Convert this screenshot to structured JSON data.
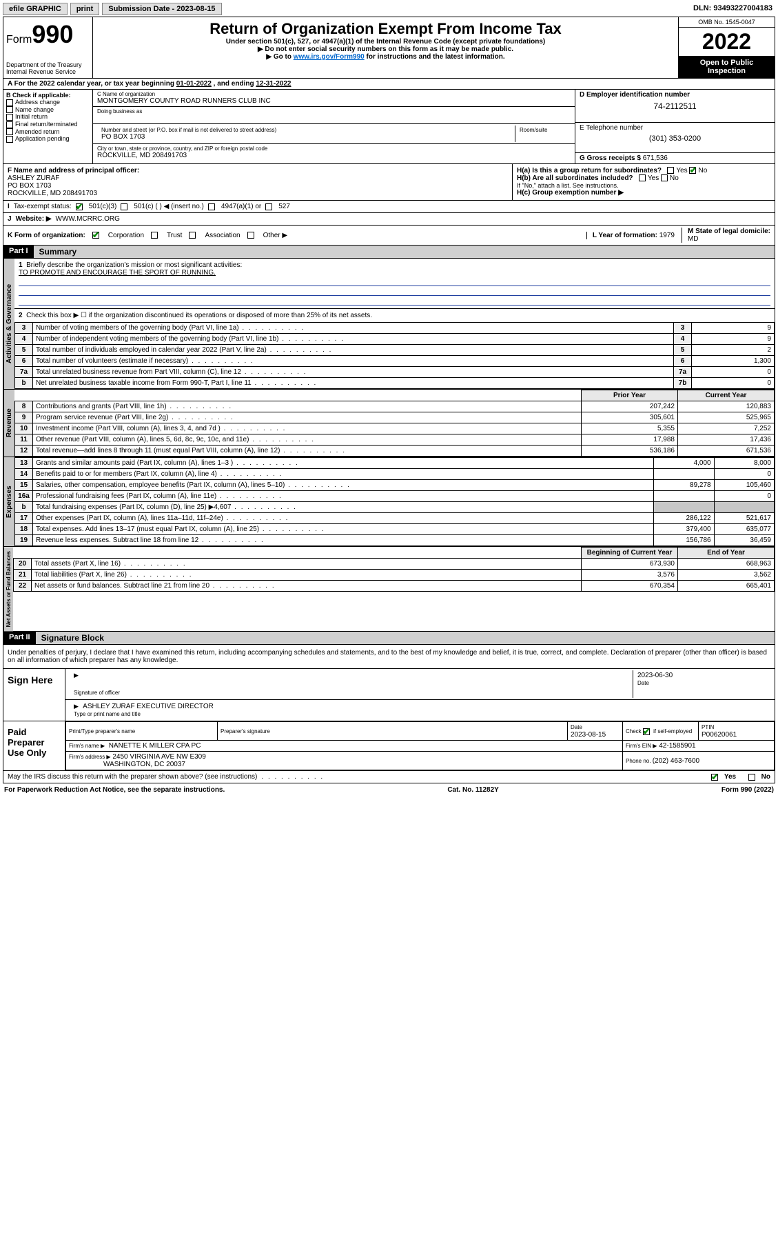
{
  "topbar": {
    "efile": "efile GRAPHIC",
    "print": "print",
    "sub_label": "Submission Date - ",
    "sub_date": "2023-08-15",
    "dln_label": "DLN: ",
    "dln": "93493227004183"
  },
  "header": {
    "form_label": "Form",
    "form_no": "990",
    "dept": "Department of the Treasury",
    "irs": "Internal Revenue Service",
    "title": "Return of Organization Exempt From Income Tax",
    "sub1": "Under section 501(c), 527, or 4947(a)(1) of the Internal Revenue Code (except private foundations)",
    "sub2": "▶ Do not enter social security numbers on this form as it may be made public.",
    "sub3_pre": "▶ Go to ",
    "sub3_link": "www.irs.gov/Form990",
    "sub3_post": " for instructions and the latest information.",
    "omb": "OMB No. 1545-0047",
    "year": "2022",
    "otp": "Open to Public Inspection"
  },
  "period": {
    "a": "A For the 2022 calendar year, or tax year beginning ",
    "begin": "01-01-2022",
    "mid": " , and ending ",
    "end": "12-31-2022"
  },
  "boxB": {
    "label": "B Check if applicable:",
    "opts": [
      "Address change",
      "Name change",
      "Initial return",
      "Final return/terminated",
      "Amended return",
      "Application pending"
    ]
  },
  "boxC": {
    "name_label": "C Name of organization",
    "name": "MONTGOMERY COUNTY ROAD RUNNERS CLUB INC",
    "dba_label": "Doing business as",
    "street_label": "Number and street (or P.O. box if mail is not delivered to street address)",
    "room_label": "Room/suite",
    "street": "PO BOX 1703",
    "city_label": "City or town, state or province, country, and ZIP or foreign postal code",
    "city": "ROCKVILLE, MD  208491703"
  },
  "boxD": {
    "label": "D Employer identification number",
    "value": "74-2112511"
  },
  "boxE": {
    "label": "E Telephone number",
    "value": "(301) 353-0200"
  },
  "boxG": {
    "label": "G Gross receipts $ ",
    "value": "671,536"
  },
  "boxF": {
    "label": "F Name and address of principal officer:",
    "name": "ASHLEY ZURAF",
    "addr1": "PO BOX 1703",
    "addr2": "ROCKVILLE, MD  208491703"
  },
  "boxH": {
    "a": "H(a)  Is this a group return for subordinates?",
    "b": "H(b)  Are all subordinates included?",
    "b_note": "If \"No,\" attach a list. See instructions.",
    "c": "H(c)  Group exemption number ▶",
    "yes": "Yes",
    "no": "No"
  },
  "boxI": {
    "label": "Tax-exempt status:",
    "c3": "501(c)(3)",
    "c": "501(c) (  ) ◀ (insert no.)",
    "a1": "4947(a)(1) or",
    "s527": "527"
  },
  "boxJ": {
    "label": "Website: ▶",
    "value": "WWW.MCRRC.ORG"
  },
  "boxK": {
    "label": "K Form of organization:",
    "corp": "Corporation",
    "trust": "Trust",
    "assoc": "Association",
    "other": "Other ▶"
  },
  "boxL": {
    "label": "L Year of formation: ",
    "value": "1979"
  },
  "boxM": {
    "label": "M State of legal domicile:",
    "value": "MD"
  },
  "part1": {
    "hdr": "Part I",
    "title": "Summary"
  },
  "summary": {
    "q1": "Briefly describe the organization's mission or most significant activities:",
    "mission": "TO PROMOTE AND ENCOURAGE THE SPORT OF RUNNING.",
    "q2": "Check this box ▶ ☐  if the organization discontinued its operations or disposed of more than 25% of its net assets.",
    "lines": [
      {
        "n": "3",
        "t": "Number of voting members of the governing body (Part VI, line 1a)",
        "box": "3",
        "v": "9"
      },
      {
        "n": "4",
        "t": "Number of independent voting members of the governing body (Part VI, line 1b)",
        "box": "4",
        "v": "9"
      },
      {
        "n": "5",
        "t": "Total number of individuals employed in calendar year 2022 (Part V, line 2a)",
        "box": "5",
        "v": "2"
      },
      {
        "n": "6",
        "t": "Total number of volunteers (estimate if necessary)",
        "box": "6",
        "v": "1,300"
      },
      {
        "n": "7a",
        "t": "Total unrelated business revenue from Part VIII, column (C), line 12",
        "box": "7a",
        "v": "0"
      },
      {
        "n": "b",
        "t": "Net unrelated business taxable income from Form 990-T, Part I, line 11",
        "box": "7b",
        "v": "0"
      }
    ],
    "col_prior": "Prior Year",
    "col_curr": "Current Year",
    "rev": [
      {
        "n": "8",
        "t": "Contributions and grants (Part VIII, line 1h)",
        "p": "207,242",
        "c": "120,883"
      },
      {
        "n": "9",
        "t": "Program service revenue (Part VIII, line 2g)",
        "p": "305,601",
        "c": "525,965"
      },
      {
        "n": "10",
        "t": "Investment income (Part VIII, column (A), lines 3, 4, and 7d )",
        "p": "5,355",
        "c": "7,252"
      },
      {
        "n": "11",
        "t": "Other revenue (Part VIII, column (A), lines 5, 6d, 8c, 9c, 10c, and 11e)",
        "p": "17,988",
        "c": "17,436"
      },
      {
        "n": "12",
        "t": "Total revenue—add lines 8 through 11 (must equal Part VIII, column (A), line 12)",
        "p": "536,186",
        "c": "671,536"
      }
    ],
    "exp": [
      {
        "n": "13",
        "t": "Grants and similar amounts paid (Part IX, column (A), lines 1–3 )",
        "p": "4,000",
        "c": "8,000"
      },
      {
        "n": "14",
        "t": "Benefits paid to or for members (Part IX, column (A), line 4)",
        "p": "",
        "c": "0"
      },
      {
        "n": "15",
        "t": "Salaries, other compensation, employee benefits (Part IX, column (A), lines 5–10)",
        "p": "89,278",
        "c": "105,460"
      },
      {
        "n": "16a",
        "t": "Professional fundraising fees (Part IX, column (A), line 11e)",
        "p": "",
        "c": "0"
      },
      {
        "n": "b",
        "t": "Total fundraising expenses (Part IX, column (D), line 25) ▶4,607",
        "p": "",
        "c": ""
      },
      {
        "n": "17",
        "t": "Other expenses (Part IX, column (A), lines 11a–11d, 11f–24e)",
        "p": "286,122",
        "c": "521,617"
      },
      {
        "n": "18",
        "t": "Total expenses. Add lines 13–17 (must equal Part IX, column (A), line 25)",
        "p": "379,400",
        "c": "635,077"
      },
      {
        "n": "19",
        "t": "Revenue less expenses. Subtract line 18 from line 12",
        "p": "156,786",
        "c": "36,459"
      }
    ],
    "col_begin": "Beginning of Current Year",
    "col_end": "End of Year",
    "net": [
      {
        "n": "20",
        "t": "Total assets (Part X, line 16)",
        "p": "673,930",
        "c": "668,963"
      },
      {
        "n": "21",
        "t": "Total liabilities (Part X, line 26)",
        "p": "3,576",
        "c": "3,562"
      },
      {
        "n": "22",
        "t": "Net assets or fund balances. Subtract line 21 from line 20",
        "p": "670,354",
        "c": "665,401"
      }
    ],
    "tab_gov": "Activities & Governance",
    "tab_rev": "Revenue",
    "tab_exp": "Expenses",
    "tab_net": "Net Assets or Fund Balances"
  },
  "part2": {
    "hdr": "Part II",
    "title": "Signature Block"
  },
  "sig": {
    "decl": "Under penalties of perjury, I declare that I have examined this return, including accompanying schedules and statements, and to the best of my knowledge and belief, it is true, correct, and complete. Declaration of preparer (other than officer) is based on all information of which preparer has any knowledge.",
    "sign_here": "Sign Here",
    "sig_officer": "Signature of officer",
    "date_label": "Date",
    "sig_date": "2023-06-30",
    "name_title": "ASHLEY ZURAF  EXECUTIVE DIRECTOR",
    "type_label": "Type or print name and title",
    "paid": "Paid Preparer Use Only",
    "prep_name_label": "Print/Type preparer's name",
    "prep_sig_label": "Preparer's signature",
    "prep_date_label": "Date",
    "prep_date": "2023-08-15",
    "check_label": "Check ☑ if self-employed",
    "ptin_label": "PTIN",
    "ptin": "P00620061",
    "firm_name_label": "Firm's name   ▶",
    "firm_name": "NANETTE K MILLER CPA PC",
    "firm_ein_label": "Firm's EIN ▶",
    "firm_ein": "42-1585901",
    "firm_addr_label": "Firm's address ▶",
    "firm_addr1": "2450 VIRGINIA AVE NW E309",
    "firm_addr2": "WASHINGTON, DC  20037",
    "phone_label": "Phone no. ",
    "phone": "(202) 463-7600",
    "discuss": "May the IRS discuss this return with the preparer shown above? (see instructions)",
    "yes": "Yes",
    "no": "No"
  },
  "footer": {
    "left": "For Paperwork Reduction Act Notice, see the separate instructions.",
    "mid": "Cat. No. 11282Y",
    "right": "Form 990 (2022)"
  }
}
